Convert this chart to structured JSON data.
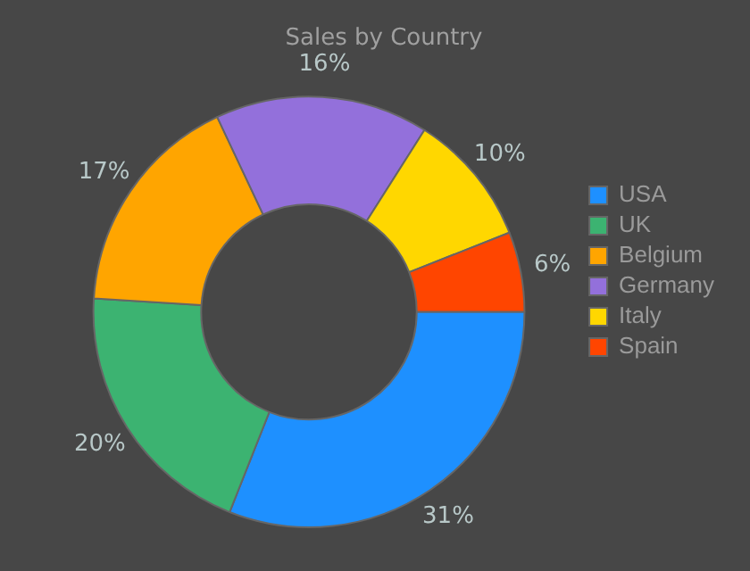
{
  "chart_data": {
    "type": "donut",
    "title": "Sales by Country",
    "categories": [
      "USA",
      "UK",
      "Belgium",
      "Germany",
      "Italy",
      "Spain"
    ],
    "values": [
      31,
      20,
      17,
      16,
      10,
      6
    ],
    "colors": [
      "#1e90ff",
      "#3cb371",
      "#ffa500",
      "#9370db",
      "#ffd700",
      "#ff4500"
    ],
    "value_labels": [
      "31%",
      "20%",
      "17%",
      "16%",
      "10%",
      "6%"
    ],
    "legend": "right"
  }
}
